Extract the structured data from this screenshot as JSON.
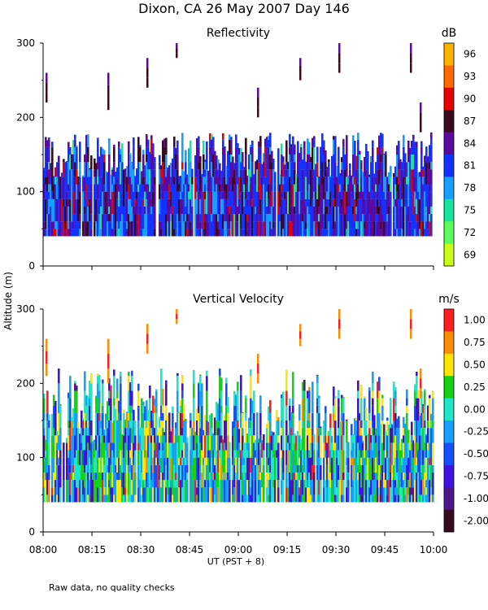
{
  "header": {
    "title": "Dixon, CA 26 May 2007  Day 146",
    "footnote": "Raw data, no quality checks"
  },
  "axes": {
    "ylabel": "Altitude (m)",
    "xlabel": "UT  (PST + 8)",
    "x_ticks": [
      "08:00",
      "08:15",
      "08:30",
      "08:45",
      "09:00",
      "09:15",
      "09:30",
      "09:45",
      "10:00"
    ],
    "y_ticks": [
      "0",
      "100",
      "200",
      "300"
    ]
  },
  "chart_data": [
    {
      "type": "heatmap",
      "title": "Reflectivity",
      "colorbar_unit": "dB",
      "xlim": [
        "08:00",
        "10:00"
      ],
      "ylim": [
        0,
        300
      ],
      "colorbar": [
        {
          "label": "96",
          "value": 96,
          "color": "#ffb300"
        },
        {
          "label": "93",
          "value": 93,
          "color": "#ff6a00"
        },
        {
          "label": "90",
          "value": 90,
          "color": "#e80000"
        },
        {
          "label": "87",
          "value": 87,
          "color": "#3a0a1e"
        },
        {
          "label": "84",
          "value": 84,
          "color": "#5a0aa0"
        },
        {
          "label": "81",
          "value": 81,
          "color": "#1432ff"
        },
        {
          "label": "78",
          "value": 78,
          "color": "#14a0ff"
        },
        {
          "label": "75",
          "value": 75,
          "color": "#14e6a0"
        },
        {
          "label": "72",
          "value": 72,
          "color": "#5aff5a"
        },
        {
          "label": "69",
          "value": 69,
          "color": "#c8ff14"
        }
      ],
      "main_band": {
        "bottom_m": 40,
        "top_m": 140,
        "peak_m": 160
      },
      "plumes": [
        {
          "time": "08:01",
          "bottom_m": 220,
          "top_m": 260
        },
        {
          "time": "08:20",
          "bottom_m": 210,
          "top_m": 260
        },
        {
          "time": "08:32",
          "bottom_m": 240,
          "top_m": 280
        },
        {
          "time": "08:41",
          "bottom_m": 280,
          "top_m": 300
        },
        {
          "time": "09:06",
          "bottom_m": 200,
          "top_m": 240
        },
        {
          "time": "09:19",
          "bottom_m": 250,
          "top_m": 280
        },
        {
          "time": "09:31",
          "bottom_m": 260,
          "top_m": 300
        },
        {
          "time": "09:53",
          "bottom_m": 260,
          "top_m": 300
        },
        {
          "time": "09:56",
          "bottom_m": 180,
          "top_m": 220
        }
      ]
    },
    {
      "type": "heatmap",
      "title": "Vertical Velocity",
      "colorbar_unit": "m/s",
      "xlim": [
        "08:00",
        "10:00"
      ],
      "ylim": [
        0,
        300
      ],
      "colorbar": [
        {
          "label": "1.00",
          "value": 1.0,
          "color": "#ff1e1e"
        },
        {
          "label": "0.75",
          "value": 0.75,
          "color": "#ff8c00"
        },
        {
          "label": "0.50",
          "value": 0.5,
          "color": "#ffe600"
        },
        {
          "label": "0.25",
          "value": 0.25,
          "color": "#14d214"
        },
        {
          "label": "0.00",
          "value": 0.0,
          "color": "#1ee6c8"
        },
        {
          "label": "-0.25",
          "value": -0.25,
          "color": "#14a0ff"
        },
        {
          "label": "-0.50",
          "value": -0.5,
          "color": "#1450ff"
        },
        {
          "label": "-0.75",
          "value": -0.75,
          "color": "#3c14e6"
        },
        {
          "label": "-1.00",
          "value": -1.0,
          "color": "#50148c"
        },
        {
          "label": "-2.00",
          "value": -2.0,
          "color": "#3a0a1e"
        }
      ],
      "main_band": {
        "bottom_m": 40,
        "top_m": 140,
        "peak_m": 200
      },
      "plumes": [
        {
          "time": "08:01",
          "bottom_m": 210,
          "top_m": 260
        },
        {
          "time": "08:20",
          "bottom_m": 200,
          "top_m": 260
        },
        {
          "time": "08:32",
          "bottom_m": 240,
          "top_m": 280
        },
        {
          "time": "08:41",
          "bottom_m": 280,
          "top_m": 300
        },
        {
          "time": "09:06",
          "bottom_m": 200,
          "top_m": 240
        },
        {
          "time": "09:19",
          "bottom_m": 250,
          "top_m": 280
        },
        {
          "time": "09:31",
          "bottom_m": 260,
          "top_m": 300
        },
        {
          "time": "09:53",
          "bottom_m": 260,
          "top_m": 300
        },
        {
          "time": "09:56",
          "bottom_m": 180,
          "top_m": 220
        }
      ]
    }
  ]
}
